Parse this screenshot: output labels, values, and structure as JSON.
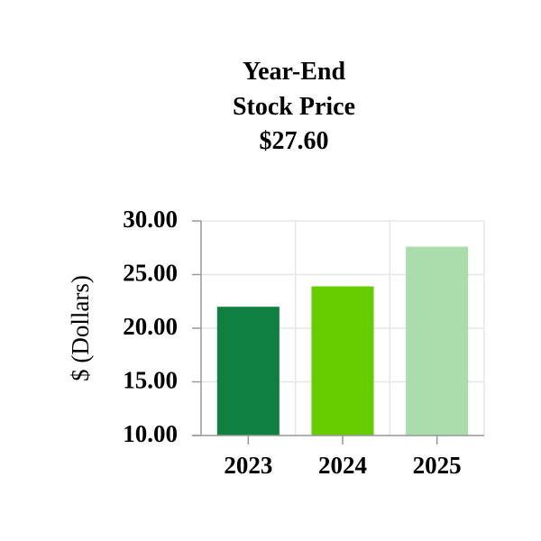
{
  "chart_data": {
    "type": "bar",
    "title": "Year-End Stock Price",
    "subtitle": "$27.60",
    "y_label": "$ (Dollars)",
    "categories": [
      "2023",
      "2024",
      "2025"
    ],
    "values": [
      22.0,
      23.9,
      27.6
    ],
    "colors": [
      "#108040",
      "#66cc00",
      "#aadcac"
    ],
    "ylim": [
      10,
      30
    ],
    "yticks": [
      {
        "value": 10,
        "label": "10.00"
      },
      {
        "value": 15,
        "label": "15.00"
      },
      {
        "value": 20,
        "label": "20.00"
      },
      {
        "value": 25,
        "label": "25.00"
      },
      {
        "value": 30,
        "label": "30.00"
      }
    ],
    "grid": true
  }
}
